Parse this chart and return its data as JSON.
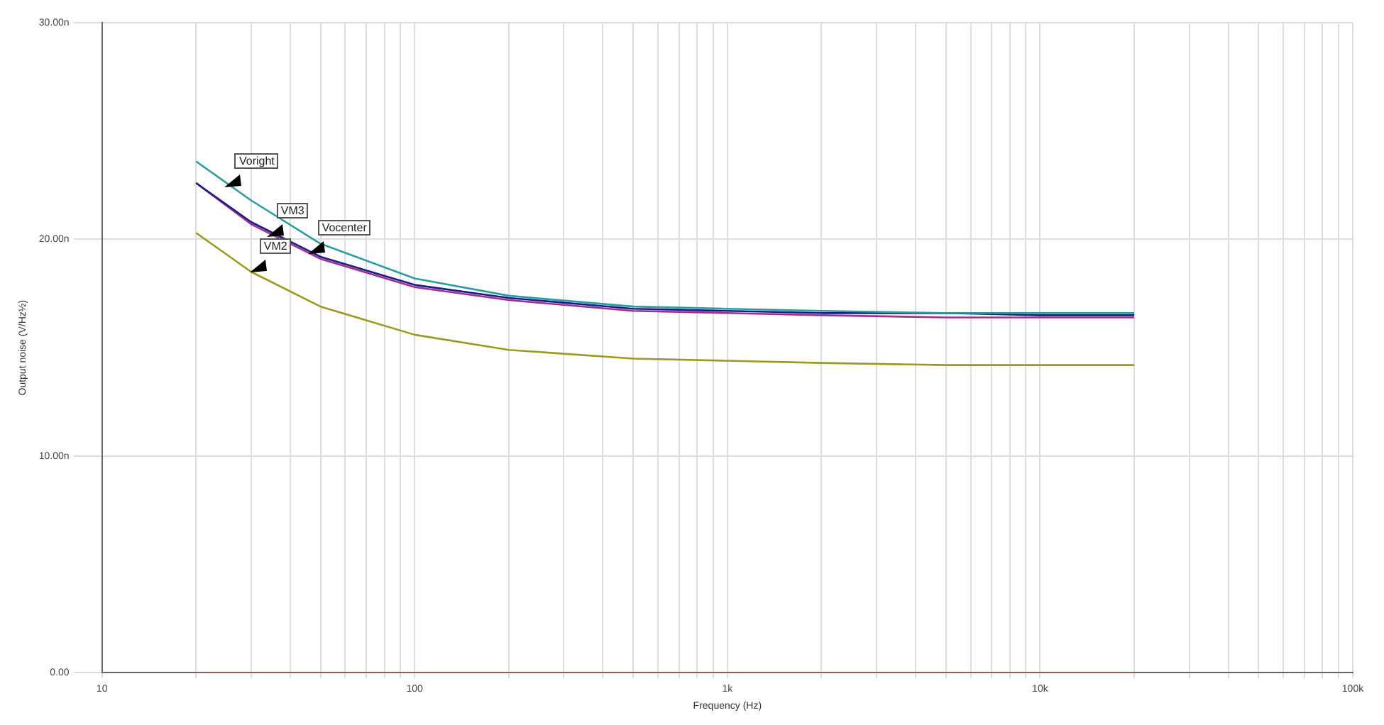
{
  "chart_data": {
    "type": "line",
    "xlabel": "Frequency (Hz)",
    "ylabel": "Output noise (V/Hz½)",
    "log": "x",
    "grid": true,
    "legend": false,
    "marker": "none",
    "x": [
      20,
      30,
      50,
      100,
      200,
      500,
      1000,
      2000,
      5000,
      10000,
      20000
    ],
    "series": [
      {
        "color": "#2a9d9d",
        "values": [
          23.6,
          21.8,
          19.8,
          18.2,
          17.4,
          16.9,
          16.8,
          16.7,
          16.6,
          16.6,
          16.6
        ]
      },
      {
        "color": "#1a1a8c",
        "values": [
          22.6,
          20.8,
          19.2,
          17.9,
          17.3,
          16.8,
          16.7,
          16.6,
          16.6,
          16.5,
          16.5
        ]
      },
      {
        "color": "#a0308a",
        "values": [
          22.6,
          20.7,
          19.1,
          17.8,
          17.2,
          16.7,
          16.6,
          16.5,
          16.4,
          16.4,
          16.4
        ]
      },
      {
        "color": "#9a9a20",
        "values": [
          20.3,
          18.5,
          16.9,
          15.6,
          14.9,
          14.5,
          14.4,
          14.3,
          14.2,
          14.2,
          14.2
        ]
      },
      {
        "color": "#b05050",
        "x": [
          20,
          20000
        ],
        "values": [
          0,
          0
        ]
      }
    ],
    "annotations": [
      {
        "text": "Voright",
        "x": 25,
        "y": 22.4
      },
      {
        "text": "VM3",
        "x": 34,
        "y": 20.1
      },
      {
        "text": "Vocenter",
        "x": 46,
        "y": 19.3
      },
      {
        "text": "VM2",
        "x": 30,
        "y": 18.5
      }
    ],
    "xlim": [
      10,
      100000
    ],
    "xticks": [
      10,
      {
        "value": 20,
        "label": null
      },
      {
        "value": 30,
        "label": null
      },
      {
        "value": 40,
        "label": null
      },
      {
        "value": 50,
        "label": null
      },
      {
        "value": 60,
        "label": null
      },
      {
        "value": 70,
        "label": null
      },
      {
        "value": 80,
        "label": null
      },
      {
        "value": 90,
        "label": null
      },
      100,
      {
        "value": 200,
        "label": null
      },
      {
        "value": 300,
        "label": null
      },
      {
        "value": 400,
        "label": null
      },
      {
        "value": 500,
        "label": null
      },
      {
        "value": 600,
        "label": null
      },
      {
        "value": 700,
        "label": null
      },
      {
        "value": 800,
        "label": null
      },
      {
        "value": 900,
        "label": null
      },
      {
        "value": 1000,
        "label": "1k"
      },
      {
        "value": 2000,
        "label": null
      },
      {
        "value": 3000,
        "label": null
      },
      {
        "value": 4000,
        "label": null
      },
      {
        "value": 5000,
        "label": null
      },
      {
        "value": 6000,
        "label": null
      },
      {
        "value": 7000,
        "label": null
      },
      {
        "value": 8000,
        "label": null
      },
      {
        "value": 9000,
        "label": null
      },
      {
        "value": 10000,
        "label": "10k"
      },
      {
        "value": 20000,
        "label": null
      },
      {
        "value": 30000,
        "label": null
      },
      {
        "value": 40000,
        "label": null
      },
      {
        "value": 50000,
        "label": null
      },
      {
        "value": 60000,
        "label": null
      },
      {
        "value": 70000,
        "label": null
      },
      {
        "value": 80000,
        "label": null
      },
      {
        "value": 90000,
        "label": null
      },
      {
        "value": 100000,
        "label": "100k"
      }
    ],
    "ylim": [
      0,
      30
    ],
    "yticks": [
      {
        "value": 0,
        "label": "0.00"
      },
      {
        "value": 10,
        "label": "10.00n"
      },
      {
        "value": 20,
        "label": "20.00n"
      },
      {
        "value": 30,
        "label": "30.00n"
      }
    ]
  }
}
